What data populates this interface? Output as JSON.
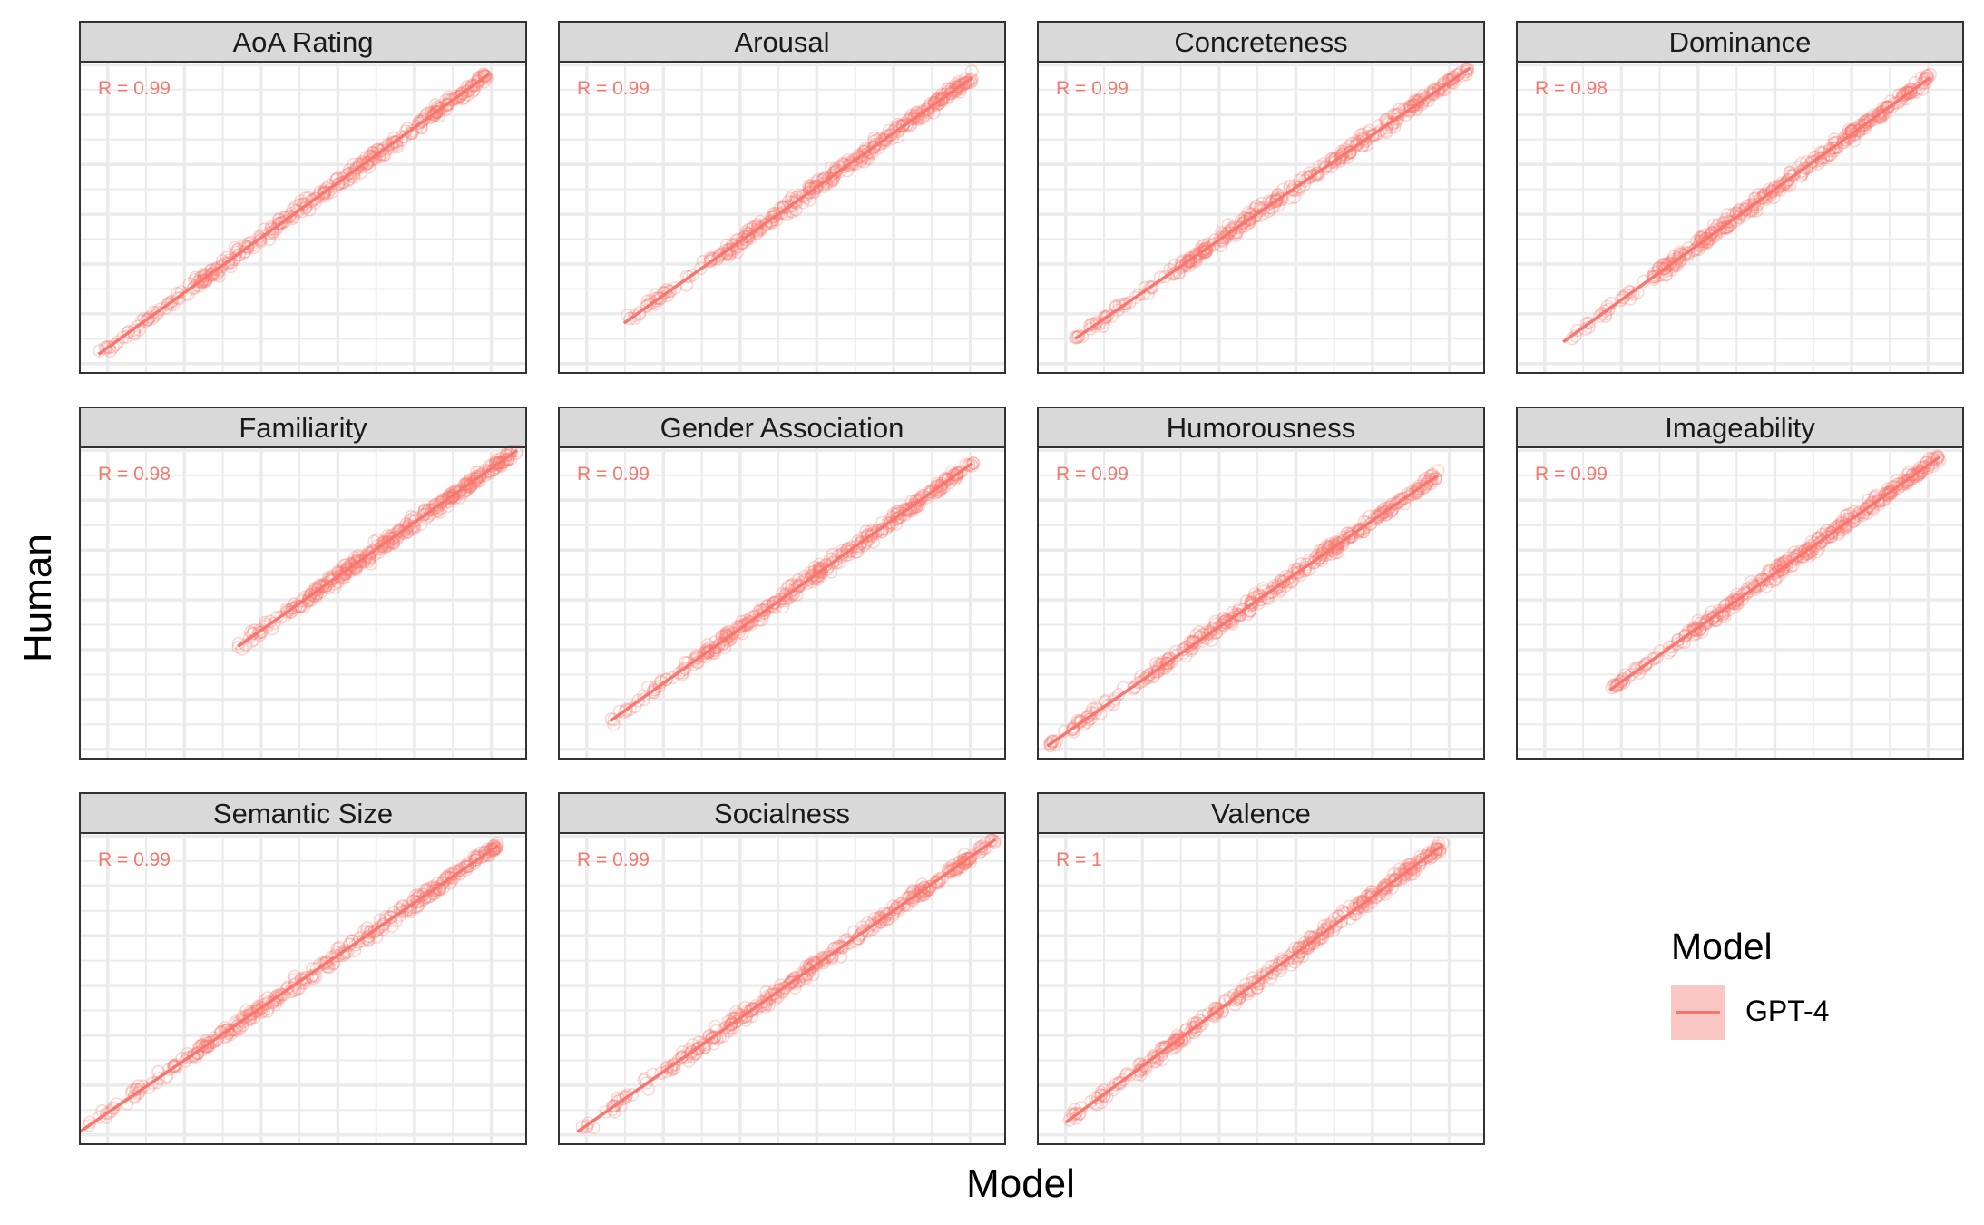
{
  "axes": {
    "x_title": "Model",
    "y_title": "Human"
  },
  "legend": {
    "title": "Model",
    "entries": [
      {
        "label": "GPT-4",
        "color": "#f8766d"
      }
    ]
  },
  "colors": {
    "points": "#f8766d",
    "fit_line": "#f8766d",
    "strip_fill": "#d9d9d9",
    "grid": "#ebebeb",
    "panel_border": "#333333"
  },
  "chart_data": [
    {
      "type": "scatter",
      "title": "AoA Rating",
      "r_label": "R = 0.99",
      "r_value": 0.99,
      "xlim": [
        0.04,
        1.0
      ],
      "ylim": [
        0.0,
        1.0
      ],
      "fit_line": {
        "x": [
          0.08,
          0.92
        ],
        "y": [
          0.06,
          0.96
        ]
      }
    },
    {
      "type": "scatter",
      "title": "Arousal",
      "r_label": "R = 0.99",
      "r_value": 0.99,
      "xlim": [
        0.04,
        1.0
      ],
      "ylim": [
        0.0,
        1.0
      ],
      "fit_line": {
        "x": [
          0.18,
          0.93
        ],
        "y": [
          0.16,
          0.95
        ]
      }
    },
    {
      "type": "scatter",
      "title": "Concreteness",
      "r_label": "R = 0.99",
      "r_value": 0.99,
      "xlim": [
        0.04,
        1.0
      ],
      "ylim": [
        0.0,
        1.0
      ],
      "fit_line": {
        "x": [
          0.12,
          0.97
        ],
        "y": [
          0.11,
          0.98
        ]
      }
    },
    {
      "type": "scatter",
      "title": "Dominance",
      "r_label": "R = 0.98",
      "r_value": 0.98,
      "xlim": [
        0.04,
        1.0
      ],
      "ylim": [
        0.0,
        1.0
      ],
      "fit_line": {
        "x": [
          0.14,
          0.93
        ],
        "y": [
          0.1,
          0.95
        ]
      }
    },
    {
      "type": "scatter",
      "title": "Familiarity",
      "r_label": "R = 0.98",
      "r_value": 0.98,
      "xlim": [
        0.04,
        1.0
      ],
      "ylim": [
        0.0,
        1.0
      ],
      "fit_line": {
        "x": [
          0.38,
          0.98
        ],
        "y": [
          0.36,
          0.99
        ]
      }
    },
    {
      "type": "scatter",
      "title": "Gender Association",
      "r_label": "R = 0.99",
      "r_value": 0.99,
      "xlim": [
        0.04,
        1.0
      ],
      "ylim": [
        0.0,
        1.0
      ],
      "fit_line": {
        "x": [
          0.15,
          0.93
        ],
        "y": [
          0.12,
          0.95
        ]
      }
    },
    {
      "type": "scatter",
      "title": "Humorousness",
      "r_label": "R = 0.99",
      "r_value": 0.99,
      "xlim": [
        0.04,
        1.0
      ],
      "ylim": [
        0.0,
        1.0
      ],
      "fit_line": {
        "x": [
          0.06,
          0.9
        ],
        "y": [
          0.04,
          0.91
        ]
      }
    },
    {
      "type": "scatter",
      "title": "Imageability",
      "r_label": "R = 0.99",
      "r_value": 0.99,
      "xlim": [
        0.04,
        1.0
      ],
      "ylim": [
        0.0,
        1.0
      ],
      "fit_line": {
        "x": [
          0.24,
          0.95
        ],
        "y": [
          0.22,
          0.97
        ]
      }
    },
    {
      "type": "scatter",
      "title": "Semantic Size",
      "r_label": "R = 0.99",
      "r_value": 0.99,
      "xlim": [
        0.04,
        1.0
      ],
      "ylim": [
        0.0,
        1.0
      ],
      "fit_line": {
        "x": [
          0.04,
          0.94
        ],
        "y": [
          0.04,
          0.96
        ]
      }
    },
    {
      "type": "scatter",
      "title": "Socialness",
      "r_label": "R = 0.99",
      "r_value": 0.99,
      "xlim": [
        0.04,
        1.0
      ],
      "ylim": [
        0.0,
        1.0
      ],
      "fit_line": {
        "x": [
          0.08,
          0.98
        ],
        "y": [
          0.04,
          0.98
        ]
      }
    },
    {
      "type": "scatter",
      "title": "Valence",
      "r_label": "R = 1",
      "r_value": 1.0,
      "xlim": [
        0.04,
        1.0
      ],
      "ylim": [
        0.0,
        1.0
      ],
      "fit_line": {
        "x": [
          0.1,
          0.91
        ],
        "y": [
          0.07,
          0.96
        ]
      }
    }
  ]
}
